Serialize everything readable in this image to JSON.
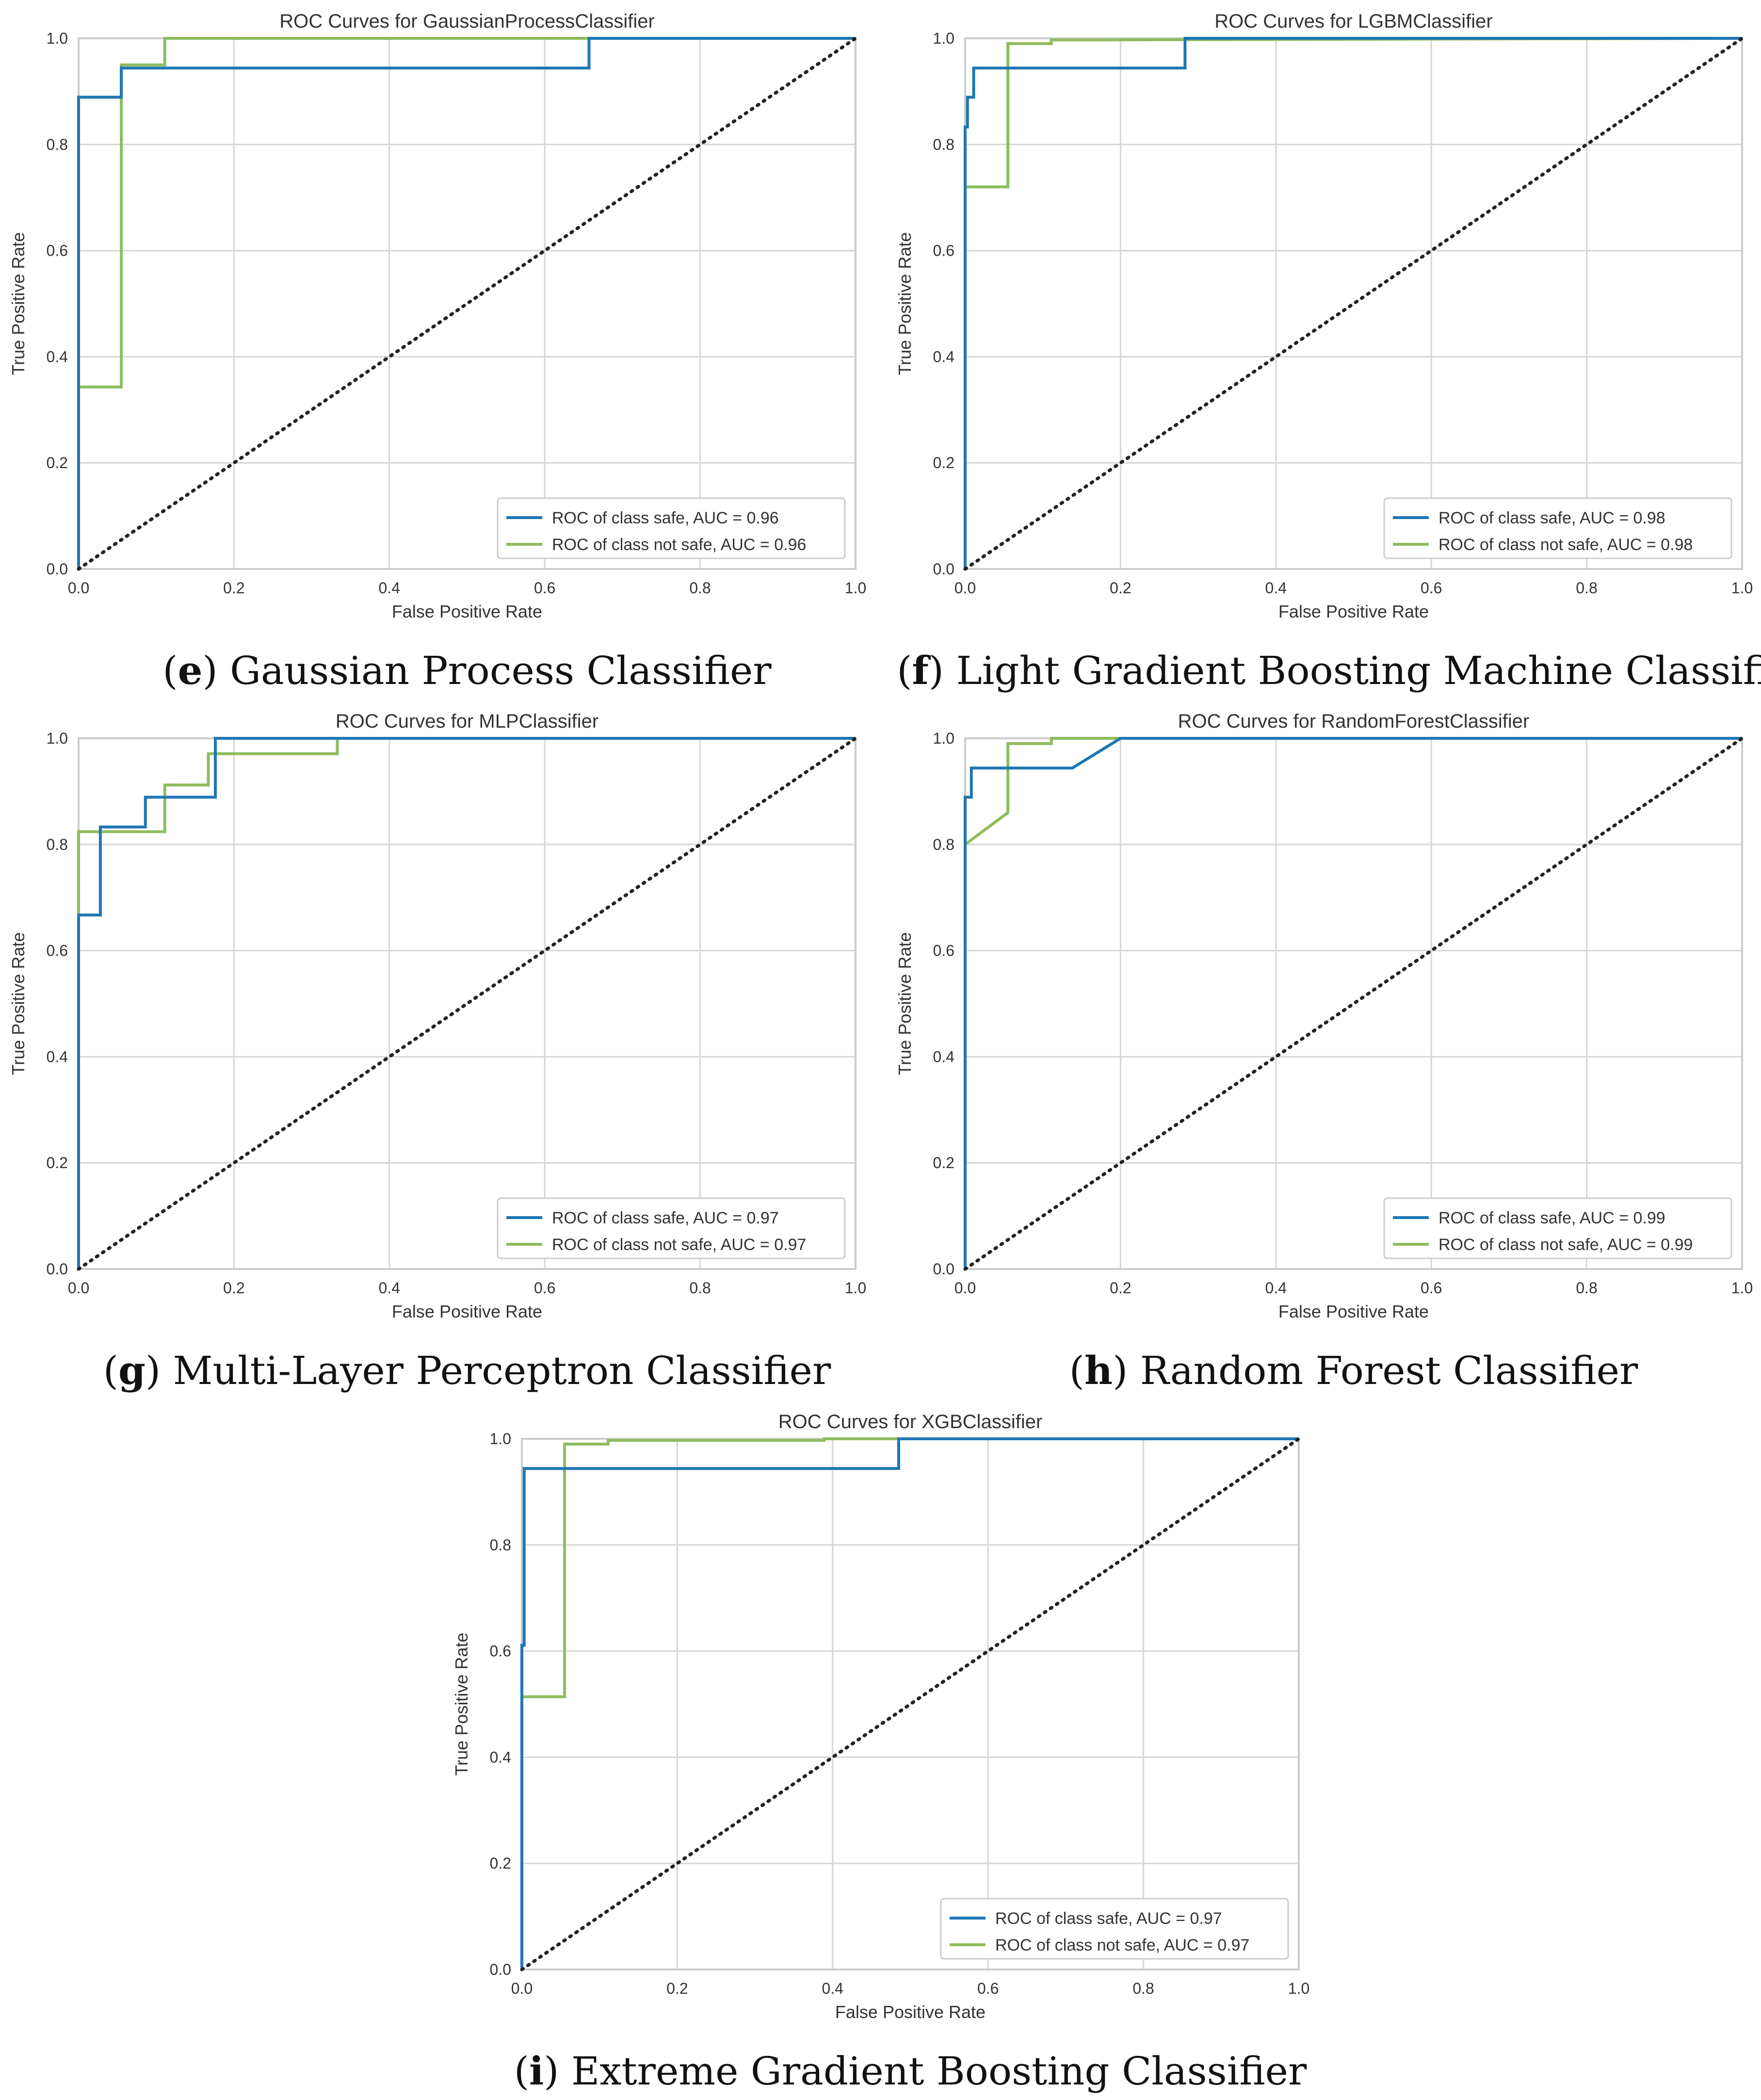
{
  "chart_data": [
    {
      "type": "line",
      "title": "ROC Curves for GaussianProcessClassifier",
      "xlabel": "False Positive Rate",
      "ylabel": "True Positive Rate",
      "xlim": [
        0,
        1
      ],
      "ylim": [
        0,
        1
      ],
      "xticks": [
        "0.0",
        "0.2",
        "0.4",
        "0.6",
        "0.8",
        "1.0"
      ],
      "yticks": [
        "0.0",
        "0.2",
        "0.4",
        "0.6",
        "0.8",
        "1.0"
      ],
      "grid": true,
      "legend": "bottom-right",
      "caption": {
        "letter": "e",
        "text": "Gaussian Process Classifier"
      },
      "series": [
        {
          "name": "ROC of class safe, AUC = 0.96",
          "color": "#1f77b4",
          "x": [
            0,
            0,
            0,
            0.055,
            0.055,
            0.657,
            0.657,
            1.0
          ],
          "y": [
            0,
            0.833,
            0.889,
            0.889,
            0.944,
            0.944,
            1.0,
            1.0
          ]
        },
        {
          "name": "ROC of class not safe, AUC = 0.96",
          "color": "#8fbc5e",
          "x": [
            0,
            0,
            0.055,
            0.055,
            0.111,
            0.111,
            0.167,
            1.0
          ],
          "y": [
            0,
            0.343,
            0.343,
            0.95,
            0.95,
            1.0,
            1.0,
            1.0
          ]
        },
        {
          "name": "",
          "color": "#222222",
          "style": "dotted",
          "x": [
            0,
            1
          ],
          "y": [
            0,
            1
          ]
        }
      ]
    },
    {
      "type": "line",
      "title": "ROC Curves for LGBMClassifier",
      "xlabel": "False Positive Rate",
      "ylabel": "True Positive Rate",
      "xlim": [
        0,
        1
      ],
      "ylim": [
        0,
        1
      ],
      "xticks": [
        "0.0",
        "0.2",
        "0.4",
        "0.6",
        "0.8",
        "1.0"
      ],
      "yticks": [
        "0.0",
        "0.2",
        "0.4",
        "0.6",
        "0.8",
        "1.0"
      ],
      "grid": true,
      "legend": "bottom-right",
      "caption": {
        "letter": "f",
        "text": "Light Gradient Boosting Machine Classifier"
      },
      "series": [
        {
          "name": "ROC of class safe, AUC = 0.98",
          "color": "#1f77b4",
          "x": [
            0,
            0,
            0.003,
            0.003,
            0.011,
            0.011,
            0.283,
            0.283,
            1.0
          ],
          "y": [
            0,
            0.833,
            0.833,
            0.889,
            0.889,
            0.944,
            0.944,
            1.0,
            1.0
          ]
        },
        {
          "name": "ROC of class not safe, AUC = 0.98",
          "color": "#8fbc5e",
          "x": [
            0,
            0,
            0.055,
            0.055,
            0.111,
            0.111,
            0.167,
            1.0
          ],
          "y": [
            0,
            0.72,
            0.72,
            0.99,
            0.99,
            0.997,
            0.997,
            1.0
          ]
        },
        {
          "name": "",
          "color": "#222222",
          "style": "dotted",
          "x": [
            0,
            1
          ],
          "y": [
            0,
            1
          ]
        }
      ]
    },
    {
      "type": "line",
      "title": "ROC Curves for MLPClassifier",
      "xlabel": "False Positive Rate",
      "ylabel": "True Positive Rate",
      "xlim": [
        0,
        1
      ],
      "ylim": [
        0,
        1
      ],
      "xticks": [
        "0.0",
        "0.2",
        "0.4",
        "0.6",
        "0.8",
        "1.0"
      ],
      "yticks": [
        "0.0",
        "0.2",
        "0.4",
        "0.6",
        "0.8",
        "1.0"
      ],
      "grid": true,
      "legend": "bottom-right",
      "caption": {
        "letter": "g",
        "text": "Multi-Layer Perceptron Classifier"
      },
      "series": [
        {
          "name": "ROC of class safe, AUC = 0.97",
          "color": "#1f77b4",
          "x": [
            0,
            0,
            0.028,
            0.028,
            0.086,
            0.086,
            0.176,
            0.176,
            1.0
          ],
          "y": [
            0,
            0.667,
            0.667,
            0.833,
            0.833,
            0.889,
            0.889,
            1.0,
            1.0
          ]
        },
        {
          "name": "ROC of class not safe, AUC = 0.97",
          "color": "#8fbc5e",
          "x": [
            0,
            0,
            0.111,
            0.111,
            0.167,
            0.167,
            0.333,
            0.333,
            1.0
          ],
          "y": [
            0,
            0.824,
            0.824,
            0.912,
            0.912,
            0.971,
            0.971,
            1.0,
            1.0
          ]
        },
        {
          "name": "",
          "color": "#222222",
          "style": "dotted",
          "x": [
            0,
            1
          ],
          "y": [
            0,
            1
          ]
        }
      ]
    },
    {
      "type": "line",
      "title": "ROC Curves for RandomForestClassifier",
      "xlabel": "False Positive Rate",
      "ylabel": "True Positive Rate",
      "xlim": [
        0,
        1
      ],
      "ylim": [
        0,
        1
      ],
      "xticks": [
        "0.0",
        "0.2",
        "0.4",
        "0.6",
        "0.8",
        "1.0"
      ],
      "yticks": [
        "0.0",
        "0.2",
        "0.4",
        "0.6",
        "0.8",
        "1.0"
      ],
      "grid": true,
      "legend": "bottom-right",
      "caption": {
        "letter": "h",
        "text": "Random Forest Classifier"
      },
      "series": [
        {
          "name": "ROC of class safe, AUC = 0.99",
          "color": "#1f77b4",
          "x": [
            0,
            0,
            0.008,
            0.008,
            0.138,
            0.2,
            1.0
          ],
          "y": [
            0,
            0.889,
            0.889,
            0.944,
            0.944,
            1.0,
            1.0
          ]
        },
        {
          "name": "ROC of class not safe, AUC = 0.99",
          "color": "#8fbc5e",
          "x": [
            0,
            0,
            0.055,
            0.055,
            0.111,
            0.111,
            1.0
          ],
          "y": [
            0,
            0.8,
            0.86,
            0.99,
            0.99,
            1.0,
            1.0
          ]
        },
        {
          "name": "",
          "color": "#222222",
          "style": "dotted",
          "x": [
            0,
            1
          ],
          "y": [
            0,
            1
          ]
        }
      ]
    },
    {
      "type": "line",
      "title": "ROC Curves for XGBClassifier",
      "xlabel": "False Positive Rate",
      "ylabel": "True Positive Rate",
      "xlim": [
        0,
        1
      ],
      "ylim": [
        0,
        1
      ],
      "xticks": [
        "0.0",
        "0.2",
        "0.4",
        "0.6",
        "0.8",
        "1.0"
      ],
      "yticks": [
        "0.0",
        "0.2",
        "0.4",
        "0.6",
        "0.8",
        "1.0"
      ],
      "grid": true,
      "legend": "bottom-right",
      "caption": {
        "letter": "i",
        "text": "Extreme Gradient Boosting Classifier"
      },
      "series": [
        {
          "name": "ROC of class safe, AUC = 0.97",
          "color": "#1f77b4",
          "x": [
            0,
            0,
            0.003,
            0.003,
            0.485,
            0.485,
            1.0
          ],
          "y": [
            0,
            0.611,
            0.611,
            0.944,
            0.944,
            1.0,
            1.0
          ]
        },
        {
          "name": "ROC of class not safe, AUC = 0.97",
          "color": "#8fbc5e",
          "x": [
            0,
            0,
            0.055,
            0.055,
            0.111,
            0.111,
            0.389,
            0.389,
            1.0
          ],
          "y": [
            0,
            0.514,
            0.514,
            0.99,
            0.99,
            0.997,
            0.997,
            1.0,
            1.0
          ]
        },
        {
          "name": "",
          "color": "#222222",
          "style": "dotted",
          "x": [
            0,
            1
          ],
          "y": [
            0,
            1
          ]
        }
      ]
    }
  ]
}
